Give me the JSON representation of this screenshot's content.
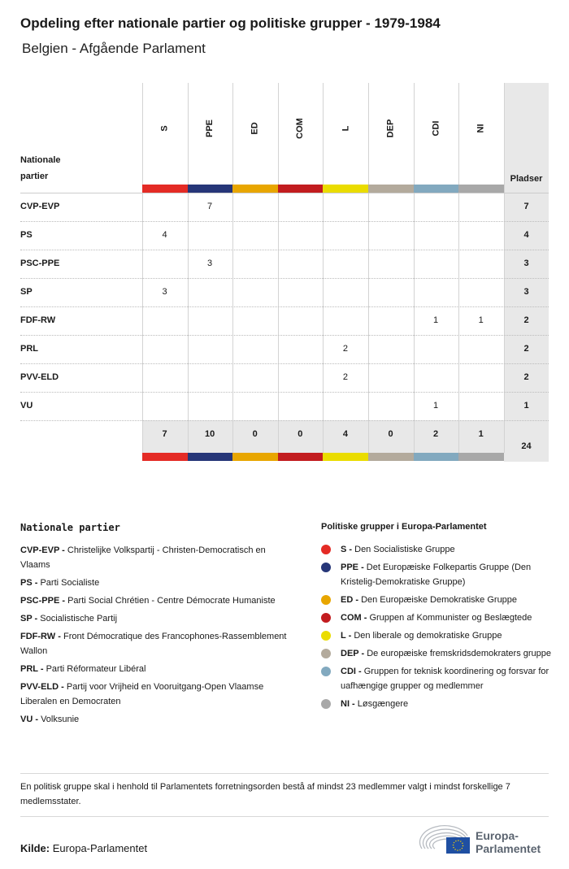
{
  "title": "Opdeling efter nationale partier og politiske grupper - 1979-1984",
  "subtitle": "Belgien - Afgående Parlament",
  "chart_data": {
    "type": "table",
    "row_header": "Nationale partier",
    "total_header": "Pladser",
    "groups": [
      {
        "code": "S",
        "color": "#e42b25"
      },
      {
        "code": "PPE",
        "color": "#263678"
      },
      {
        "code": "ED",
        "color": "#e8a600"
      },
      {
        "code": "COM",
        "color": "#c21c1f"
      },
      {
        "code": "L",
        "color": "#eadc00"
      },
      {
        "code": "DEP",
        "color": "#b3aa9c"
      },
      {
        "code": "CDI",
        "color": "#82a9bf"
      },
      {
        "code": "NI",
        "color": "#a8a8a8"
      }
    ],
    "rows": [
      {
        "party": "CVP-EVP",
        "values": [
          "",
          "7",
          "",
          "",
          "",
          "",
          "",
          ""
        ],
        "total": "7"
      },
      {
        "party": "PS",
        "values": [
          "4",
          "",
          "",
          "",
          "",
          "",
          "",
          ""
        ],
        "total": "4"
      },
      {
        "party": "PSC-PPE",
        "values": [
          "",
          "3",
          "",
          "",
          "",
          "",
          "",
          ""
        ],
        "total": "3"
      },
      {
        "party": "SP",
        "values": [
          "3",
          "",
          "",
          "",
          "",
          "",
          "",
          ""
        ],
        "total": "3"
      },
      {
        "party": "FDF-RW",
        "values": [
          "",
          "",
          "",
          "",
          "",
          "",
          "1",
          "1"
        ],
        "total": "2"
      },
      {
        "party": "PRL",
        "values": [
          "",
          "",
          "",
          "",
          "2",
          "",
          "",
          ""
        ],
        "total": "2"
      },
      {
        "party": "PVV-ELD",
        "values": [
          "",
          "",
          "",
          "",
          "2",
          "",
          "",
          ""
        ],
        "total": "2"
      },
      {
        "party": "VU",
        "values": [
          "",
          "",
          "",
          "",
          "",
          "",
          "1",
          ""
        ],
        "total": "1"
      }
    ],
    "column_totals": [
      "7",
      "10",
      "0",
      "0",
      "4",
      "0",
      "2",
      "1"
    ],
    "grand_total": "24"
  },
  "legend_parties": {
    "title": "Nationale partier",
    "items": [
      {
        "code": "CVP-EVP -",
        "name": "Christelijke Volkspartij - Christen-Democratisch en Vlaams"
      },
      {
        "code": "PS -",
        "name": "Parti Socialiste"
      },
      {
        "code": "PSC-PPE -",
        "name": "Parti Social Chrétien - Centre Démocrate Humaniste"
      },
      {
        "code": "SP -",
        "name": "Socialistische Partij"
      },
      {
        "code": "FDF-RW -",
        "name": "Front Démocratique des Francophones-Rassemblement Wallon"
      },
      {
        "code": "PRL -",
        "name": "Parti Réformateur Libéral"
      },
      {
        "code": "PVV-ELD -",
        "name": "Partij voor Vrijheid en Vooruitgang-Open Vlaamse Liberalen en Democraten"
      },
      {
        "code": "VU -",
        "name": "Volksunie"
      }
    ]
  },
  "legend_groups": {
    "title": "Politiske grupper i Europa-Parlamentet",
    "items": [
      {
        "code": "S -",
        "name": "Den Socialistiske Gruppe",
        "color": "#e42b25"
      },
      {
        "code": "PPE -",
        "name": "Det Europæiske Folkepartis Gruppe (Den Kristelig-Demokratiske Gruppe)",
        "color": "#263678"
      },
      {
        "code": "ED -",
        "name": "Den Europæiske Demokratiske Gruppe",
        "color": "#e8a600"
      },
      {
        "code": "COM -",
        "name": "Gruppen af Kommunister og Beslægtede",
        "color": "#c21c1f"
      },
      {
        "code": "L -",
        "name": "Den liberale og demokratiske Gruppe",
        "color": "#eadc00"
      },
      {
        "code": "DEP -",
        "name": "De europæiske fremskridsdemokraters gruppe",
        "color": "#b3aa9c"
      },
      {
        "code": "CDI -",
        "name": "Gruppen for teknisk koordinering og forsvar for uafhængige grupper og medlemmer",
        "color": "#82a9bf"
      },
      {
        "code": "NI -",
        "name": "Løsgængere",
        "color": "#a8a8a8"
      }
    ]
  },
  "note": "En politisk gruppe skal i henhold til Parlamentets forretningsorden bestå af mindst 23 medlemmer valgt i mindst forskellige 7 medlemsstater.",
  "source": {
    "label": "Kilde:",
    "value": "Europa-Parlamentet"
  },
  "logo": {
    "line1": "Europa-",
    "line2": "Parlamentet"
  }
}
